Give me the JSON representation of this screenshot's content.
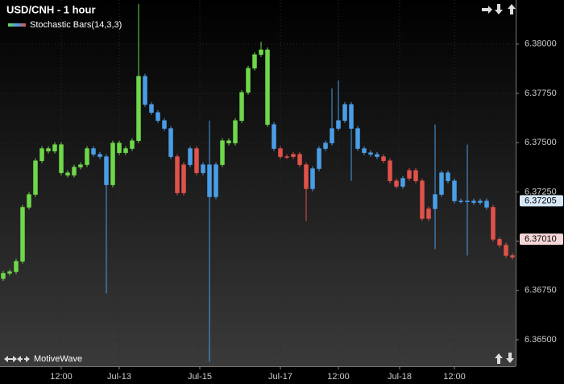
{
  "chart_data": {
    "type": "candlestick",
    "title": "USD/CNH - 1 hour",
    "watermark": "MotiveWave",
    "ylim": [
      6.36365,
      6.38224
    ],
    "yticks": [
      {
        "value": 6.365,
        "label": "6.36500"
      },
      {
        "value": 6.3675,
        "label": "6.36750"
      },
      {
        "value": 6.37,
        "label": "6.37000"
      },
      {
        "value": 6.3725,
        "label": "6.37250"
      },
      {
        "value": 6.375,
        "label": "6.37500"
      },
      {
        "value": 6.3775,
        "label": "6.37750"
      },
      {
        "value": 6.38,
        "label": "6.38000"
      }
    ],
    "xticks": [
      {
        "value": 9,
        "label": "12:00"
      },
      {
        "value": 18,
        "label": "Jul-13"
      },
      {
        "value": 30.5,
        "label": "Jul-15"
      },
      {
        "value": 43,
        "label": "Jul-17"
      },
      {
        "value": 52,
        "label": "12:00"
      },
      {
        "value": 61.5,
        "label": "Jul-18"
      },
      {
        "value": 70,
        "label": "12:00"
      }
    ],
    "grid": true,
    "price_markers": [
      {
        "value": 6.37205,
        "color": "#d6e7f8"
      },
      {
        "value": 6.3701,
        "label": "6.37010",
        "color": "#f6d6d6"
      }
    ],
    "series": [
      {
        "name": "Stochastic Bars(14,3,3)",
        "ohlc": [
          [
            6.3681,
            6.36849,
            6.36798,
            6.36837
          ],
          [
            6.36837,
            6.36857,
            6.36825,
            6.36845
          ],
          [
            6.36845,
            6.3691,
            6.36833,
            6.36898
          ],
          [
            6.36898,
            6.37184,
            6.36886,
            6.37172
          ],
          [
            6.37172,
            6.37249,
            6.3716,
            6.37237
          ],
          [
            6.37237,
            6.3742,
            6.37225,
            6.37408
          ],
          [
            6.37408,
            6.37482,
            6.37396,
            6.3747
          ],
          [
            6.3747,
            6.37482,
            6.37445,
            6.37457
          ],
          [
            6.37457,
            6.37502,
            6.37445,
            6.3749
          ],
          [
            6.3749,
            6.37502,
            6.37335,
            6.37347
          ],
          [
            6.37347,
            6.37359,
            6.37323,
            6.37335
          ],
          [
            6.37335,
            6.37388,
            6.37323,
            6.37376
          ],
          [
            6.37376,
            6.374,
            6.37364,
            6.37388
          ],
          [
            6.37388,
            6.37482,
            6.37376,
            6.3747
          ],
          [
            6.3747,
            6.37482,
            6.37429,
            6.37441
          ],
          [
            6.37441,
            6.37453,
            6.37417,
            6.37429
          ],
          [
            6.37429,
            6.37441,
            6.36735,
            6.37286
          ],
          [
            6.37286,
            6.3751,
            6.37274,
            6.37498
          ],
          [
            6.37498,
            6.3751,
            6.37437,
            6.37449
          ],
          [
            6.37449,
            6.37482,
            6.37437,
            6.3747
          ],
          [
            6.3747,
            6.37522,
            6.37458,
            6.3751
          ],
          [
            6.3751,
            6.38204,
            6.37498,
            6.37837
          ],
          [
            6.37837,
            6.37849,
            6.37682,
            6.37694
          ],
          [
            6.37694,
            6.37706,
            6.37641,
            6.37653
          ],
          [
            6.37653,
            6.37665,
            6.376,
            6.37612
          ],
          [
            6.37612,
            6.37624,
            6.3756,
            6.37572
          ],
          [
            6.37572,
            6.37584,
            6.37417,
            6.37429
          ],
          [
            6.37429,
            6.37441,
            6.37233,
            6.37245
          ],
          [
            6.37245,
            6.374,
            6.37233,
            6.37388
          ],
          [
            6.37388,
            6.37482,
            6.37376,
            6.3747
          ],
          [
            6.3747,
            6.37482,
            6.37335,
            6.37347
          ],
          [
            6.37347,
            6.374,
            6.37335,
            6.37388
          ],
          [
            6.37388,
            6.37612,
            6.36388,
            6.37225
          ],
          [
            6.37225,
            6.374,
            6.37213,
            6.37388
          ],
          [
            6.37388,
            6.37522,
            6.37376,
            6.3751
          ],
          [
            6.3751,
            6.37522,
            6.37486,
            6.37498
          ],
          [
            6.37498,
            6.37624,
            6.37486,
            6.37612
          ],
          [
            6.37612,
            6.37767,
            6.376,
            6.37755
          ],
          [
            6.37755,
            6.3789,
            6.37743,
            6.37878
          ],
          [
            6.37878,
            6.37959,
            6.37866,
            6.37947
          ],
          [
            6.37947,
            6.38012,
            6.37935,
            6.37971
          ],
          [
            6.37971,
            6.37983,
            6.3758,
            6.37592
          ],
          [
            6.37592,
            6.37604,
            6.37458,
            6.3747
          ],
          [
            6.3747,
            6.37482,
            6.37417,
            6.37429
          ],
          [
            6.37429,
            6.37441,
            6.37417,
            6.37429
          ],
          [
            6.37429,
            6.37453,
            6.37417,
            6.37441
          ],
          [
            6.37441,
            6.37453,
            6.37376,
            6.37388
          ],
          [
            6.37388,
            6.374,
            6.37102,
            6.37266
          ],
          [
            6.37266,
            6.3738,
            6.37254,
            6.37368
          ],
          [
            6.37368,
            6.37482,
            6.37356,
            6.3747
          ],
          [
            6.3747,
            6.3751,
            6.37458,
            6.37498
          ],
          [
            6.37498,
            6.37776,
            6.37486,
            6.37572
          ],
          [
            6.37572,
            6.37816,
            6.3756,
            6.37612
          ],
          [
            6.37612,
            6.37706,
            6.376,
            6.37694
          ],
          [
            6.37694,
            6.37706,
            6.37306,
            6.37572
          ],
          [
            6.37572,
            6.37584,
            6.37458,
            6.3747
          ],
          [
            6.3747,
            6.37482,
            6.37437,
            6.37449
          ],
          [
            6.37449,
            6.37461,
            6.37429,
            6.37441
          ],
          [
            6.37441,
            6.37453,
            6.37417,
            6.37429
          ],
          [
            6.37429,
            6.37441,
            6.37396,
            6.37408
          ],
          [
            6.37408,
            6.3742,
            6.37294,
            6.37306
          ],
          [
            6.37306,
            6.37318,
            6.37266,
            6.37278
          ],
          [
            6.37278,
            6.37331,
            6.37266,
            6.37319
          ],
          [
            6.37319,
            6.37371,
            6.37307,
            6.37359
          ],
          [
            6.37359,
            6.37371,
            6.37294,
            6.37306
          ],
          [
            6.37306,
            6.37318,
            6.37103,
            6.37115
          ],
          [
            6.37115,
            6.37176,
            6.37103,
            6.37164
          ],
          [
            6.37164,
            6.37592,
            6.3696,
            6.37237
          ],
          [
            6.37237,
            6.37359,
            6.37225,
            6.37347
          ],
          [
            6.37347,
            6.37359,
            6.37294,
            6.37306
          ],
          [
            6.37306,
            6.37318,
            6.37192,
            6.37204
          ],
          [
            6.37204,
            6.37216,
            6.37192,
            6.37204
          ],
          [
            6.37204,
            6.3749,
            6.36927,
            6.37204
          ],
          [
            6.37204,
            6.37216,
            6.37184,
            6.37196
          ],
          [
            6.37196,
            6.37216,
            6.37184,
            6.37204
          ],
          [
            6.37204,
            6.37216,
            6.3716,
            6.37172
          ],
          [
            6.37172,
            6.37184,
            6.36997,
            6.37009
          ],
          [
            6.37009,
            6.37021,
            6.36968,
            6.3698
          ],
          [
            6.3698,
            6.36992,
            6.36915,
            6.36927
          ],
          [
            6.36927,
            6.36939,
            6.36907,
            6.36919
          ]
        ],
        "colors": [
          "#6fd84a",
          "#6fd84a",
          "#6fd84a",
          "#6fd84a",
          "#6fd84a",
          "#6fd84a",
          "#6fd84a",
          "#6fd84a",
          "#6fd84a",
          "#6fd84a",
          "#6fd84a",
          "#6fd84a",
          "#6fd84a",
          "#6fd84a",
          "#4a9ee8",
          "#4a9ee8",
          "#4a9ee8",
          "#6fd84a",
          "#6fd84a",
          "#6fd84a",
          "#6fd84a",
          "#6fd84a",
          "#4a9ee8",
          "#4a9ee8",
          "#4a9ee8",
          "#4a9ee8",
          "#4a9ee8",
          "#e0524a",
          "#e0524a",
          "#4a9ee8",
          "#e0524a",
          "#4a9ee8",
          "#4a9ee8",
          "#4a9ee8",
          "#6fd84a",
          "#6fd84a",
          "#6fd84a",
          "#6fd84a",
          "#6fd84a",
          "#6fd84a",
          "#6fd84a",
          "#6fd84a",
          "#4a9ee8",
          "#e0524a",
          "#e0524a",
          "#e0524a",
          "#e0524a",
          "#e0524a",
          "#4a9ee8",
          "#4a9ee8",
          "#4a9ee8",
          "#4a9ee8",
          "#4a9ee8",
          "#4a9ee8",
          "#4a9ee8",
          "#4a9ee8",
          "#4a9ee8",
          "#4a9ee8",
          "#4a9ee8",
          "#e0524a",
          "#e0524a",
          "#e0524a",
          "#4a9ee8",
          "#e0524a",
          "#e0524a",
          "#e0524a",
          "#e0524a",
          "#4a9ee8",
          "#4a9ee8",
          "#4a9ee8",
          "#4a9ee8",
          "#4a9ee8",
          "#4a9ee8",
          "#4a9ee8",
          "#4a9ee8",
          "#4a9ee8",
          "#e0524a",
          "#e0524a",
          "#e0524a",
          "#e0524a"
        ]
      }
    ]
  }
}
